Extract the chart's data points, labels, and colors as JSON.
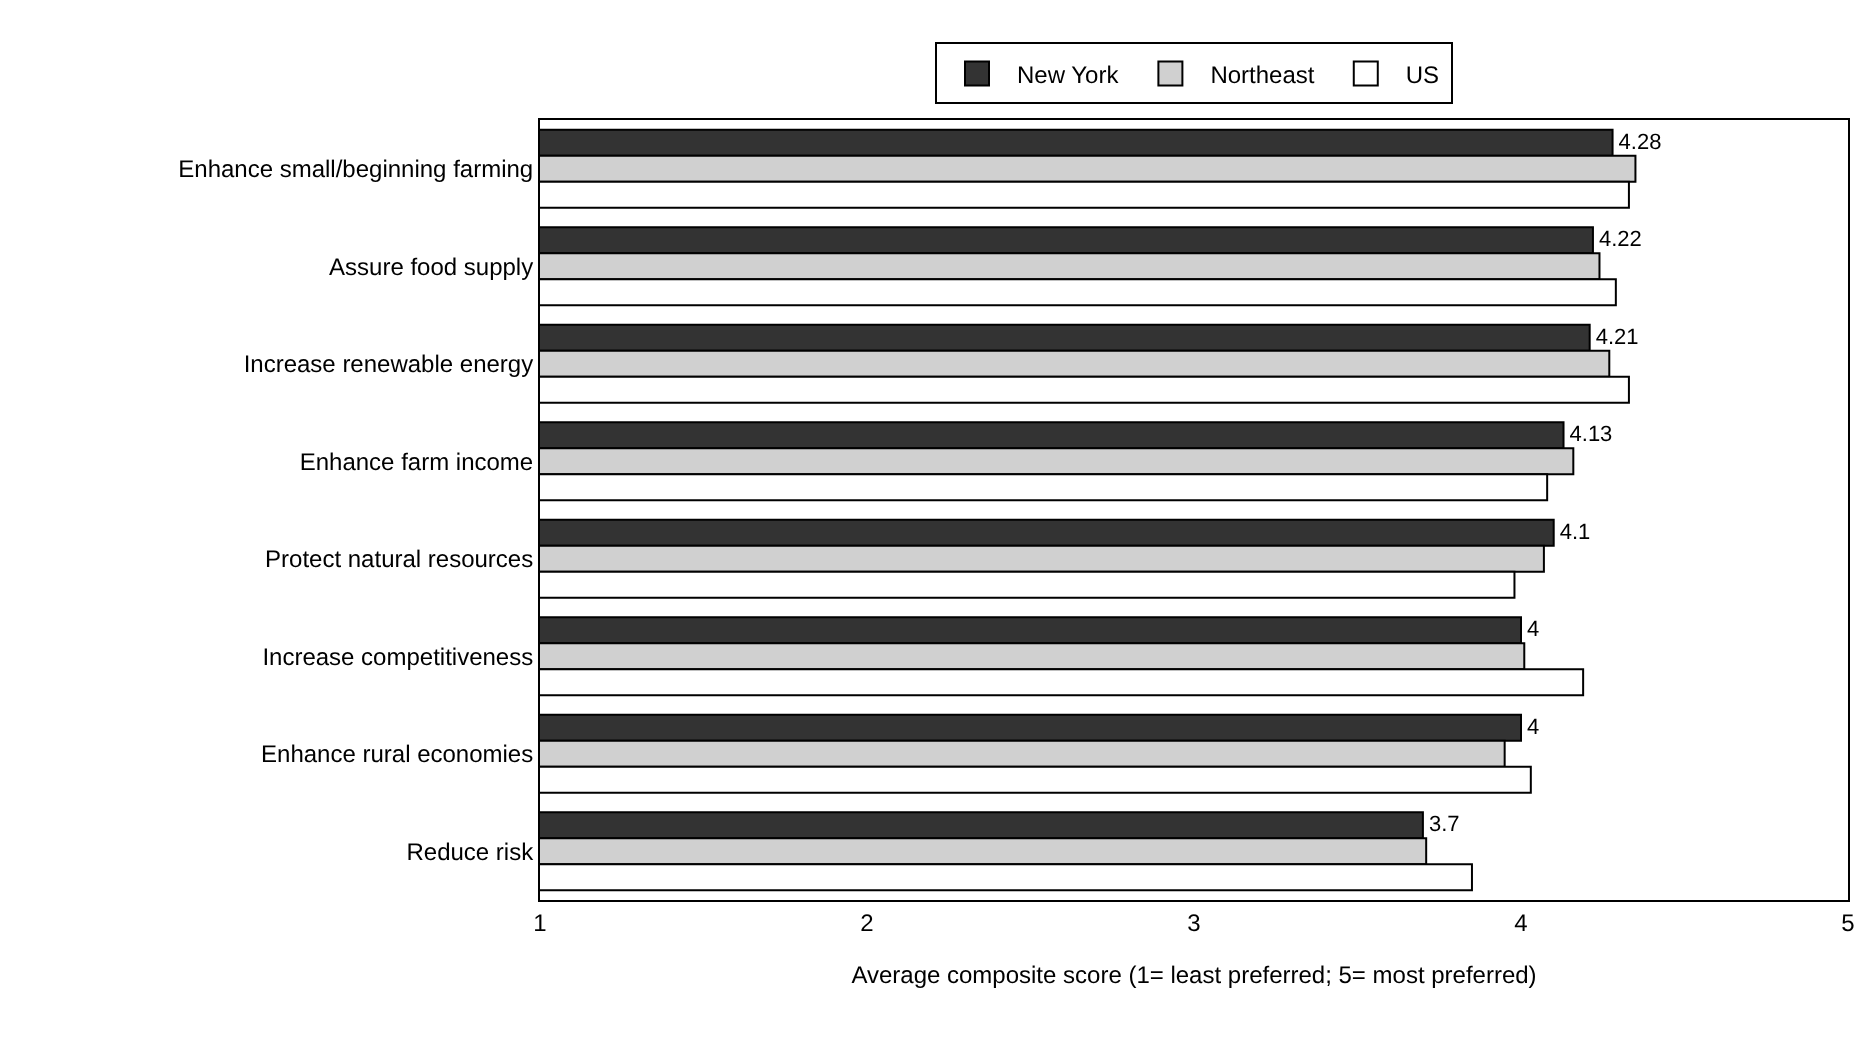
{
  "chart_data": {
    "type": "bar",
    "orientation": "horizontal",
    "xlabel": "Average composite score (1= least preferred; 5= most preferred)",
    "categories": [
      "Enhance small/beginning farming",
      "Assure food supply",
      "Increase renewable energy",
      "Enhance farm income",
      "Protect natural resources",
      "Increase competitiveness",
      "Enhance rural economies",
      "Reduce risk"
    ],
    "series": [
      {
        "name": "New York",
        "color": "#333333",
        "values": [
          4.28,
          4.22,
          4.21,
          4.13,
          4.1,
          4,
          4,
          3.7
        ],
        "value_labels": [
          "4.28",
          "4.22",
          "4.21",
          "4.13",
          "4.1",
          "4",
          "4",
          "3.7"
        ]
      },
      {
        "name": "Northeast",
        "color": "#d0d0d0",
        "values": [
          4.35,
          4.24,
          4.27,
          4.16,
          4.07,
          4.01,
          3.95,
          3.71
        ]
      },
      {
        "name": "US",
        "color": "#ffffff",
        "values": [
          4.33,
          4.29,
          4.33,
          4.08,
          3.98,
          4.19,
          4.03,
          3.85
        ]
      }
    ],
    "xlim": [
      1,
      5
    ],
    "xticks": [
      1,
      2,
      3,
      4,
      5
    ],
    "grid": false,
    "legend": "top"
  }
}
